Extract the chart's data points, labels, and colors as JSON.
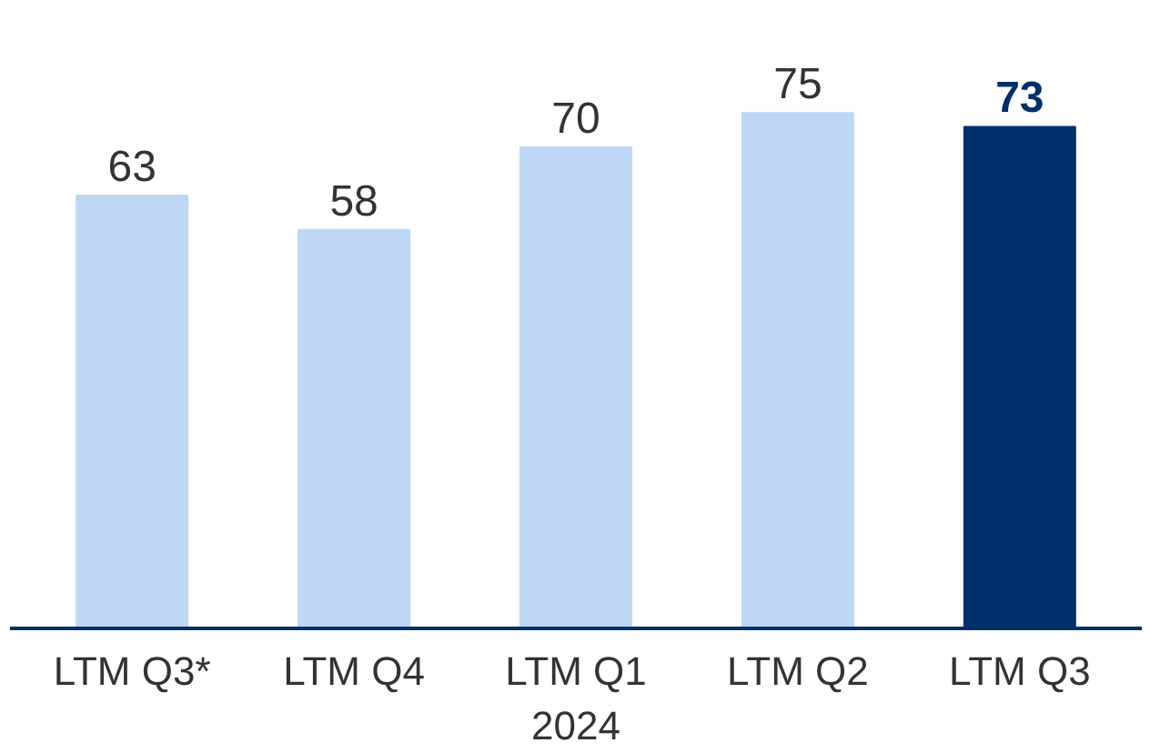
{
  "chart_data": {
    "type": "bar",
    "categories": [
      "LTM Q3*",
      "LTM Q4",
      "LTM Q1\n2024",
      "LTM Q2",
      "LTM Q3"
    ],
    "values": [
      63,
      58,
      70,
      75,
      73
    ],
    "colors": [
      "#bdd7f5",
      "#bdd7f5",
      "#bdd7f5",
      "#bdd7f5",
      "#002f6c"
    ],
    "data_labels": true
  }
}
